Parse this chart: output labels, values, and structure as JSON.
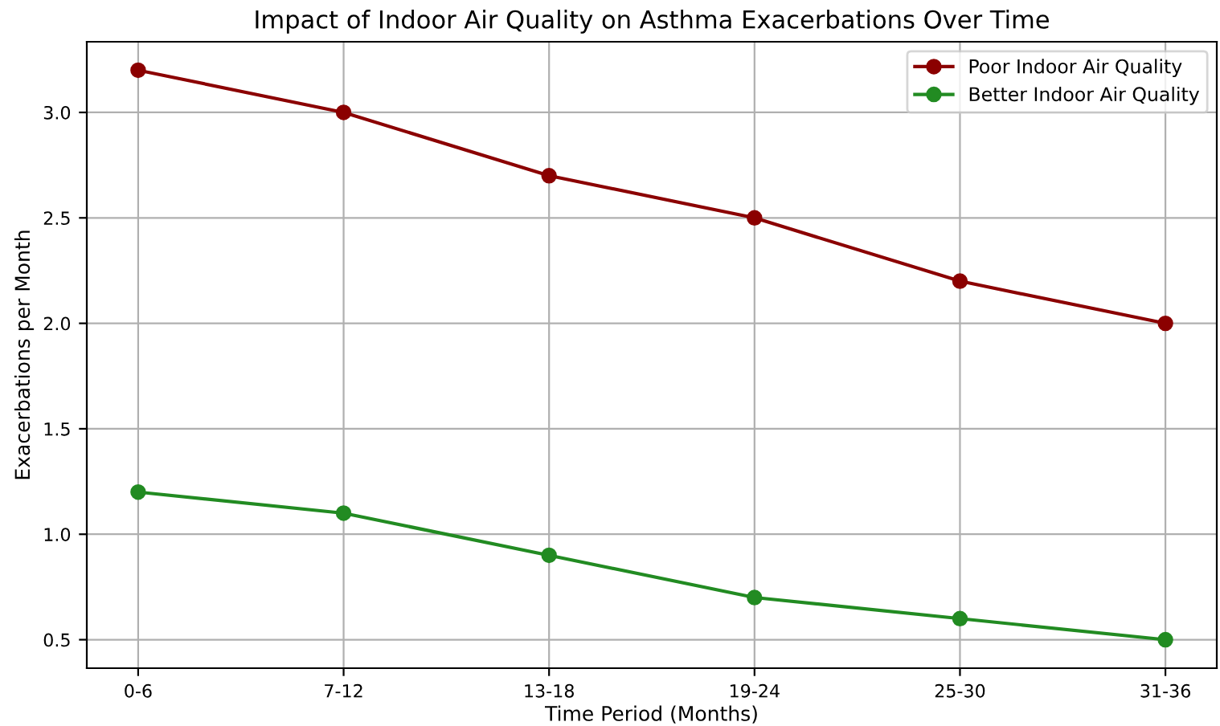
{
  "chart_data": {
    "type": "line",
    "title": "Impact of Indoor Air Quality on Asthma Exacerbations Over Time",
    "xlabel": "Time Period (Months)",
    "ylabel": "Exacerbations per Month",
    "categories": [
      "0-6",
      "7-12",
      "13-18",
      "19-24",
      "25-30",
      "31-36"
    ],
    "series": [
      {
        "name": "Poor Indoor Air Quality",
        "color": "#8b0000",
        "values": [
          3.2,
          3.0,
          2.7,
          2.5,
          2.2,
          2.0
        ]
      },
      {
        "name": "Better Indoor Air Quality",
        "color": "#228b22",
        "values": [
          1.2,
          1.1,
          0.9,
          0.7,
          0.6,
          0.5
        ]
      }
    ],
    "ylim": [
      0.365,
      3.335
    ],
    "yticks": [
      {
        "value": 0.5,
        "label": "0.5"
      },
      {
        "value": 1.0,
        "label": "1.0"
      },
      {
        "value": 1.5,
        "label": "1.5"
      },
      {
        "value": 2.0,
        "label": "2.0"
      },
      {
        "value": 2.5,
        "label": "2.5"
      },
      {
        "value": 3.0,
        "label": "3.0"
      }
    ],
    "grid": true,
    "legend": "top right",
    "marker": "circle",
    "line_style": "solid"
  }
}
